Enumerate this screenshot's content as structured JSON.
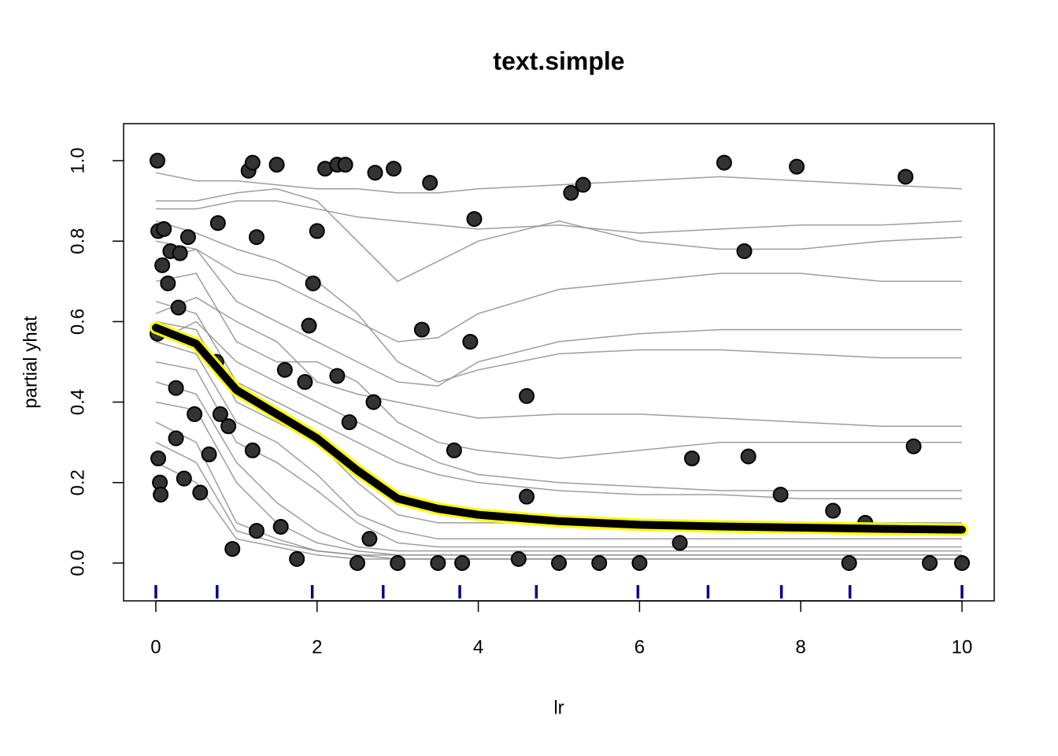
{
  "chart_data": {
    "type": "ice",
    "title": "text.simple",
    "x_label": "lr",
    "y_label": "partial yhat",
    "xlim": [
      -0.4,
      10.4
    ],
    "ylim": [
      -0.094,
      1.092
    ],
    "xticks": [
      0,
      2,
      4,
      6,
      8,
      10
    ],
    "yticks": [
      {
        "value": 0,
        "label": "0.0"
      },
      {
        "value": 0.2,
        "label": "0.2"
      },
      {
        "value": 0.4,
        "label": "0.4"
      },
      {
        "value": 0.6,
        "label": "0.6"
      },
      {
        "value": 0.8,
        "label": "0.8"
      },
      {
        "value": 1,
        "label": "1.0"
      }
    ],
    "line_color": "#8c8c8c",
    "point_color": "#333333",
    "pdp_color": "#000000",
    "pdp_outline_color": "#ffff00",
    "rug_color": "#00008b",
    "x": [
      0,
      0.5,
      1,
      1.5,
      2,
      2.5,
      3,
      3.5,
      4,
      5,
      6,
      7,
      8,
      9,
      10
    ],
    "lines": [
      {
        "values": [
          0.97,
          0.95,
          0.95,
          0.94,
          0.93,
          0.93,
          0.92,
          0.92,
          0.93,
          0.94,
          0.95,
          0.96,
          0.95,
          0.94,
          0.93
        ]
      },
      {
        "values": [
          0.88,
          0.88,
          0.9,
          0.9,
          0.88,
          0.86,
          0.85,
          0.84,
          0.83,
          0.84,
          0.82,
          0.83,
          0.84,
          0.84,
          0.85
        ]
      },
      {
        "values": [
          0.8,
          0.78,
          0.72,
          0.7,
          0.65,
          0.6,
          0.55,
          0.56,
          0.62,
          0.68,
          0.7,
          0.72,
          0.72,
          0.7,
          0.7
        ]
      },
      {
        "values": [
          0.75,
          0.78,
          0.65,
          0.6,
          0.55,
          0.5,
          0.45,
          0.44,
          0.5,
          0.55,
          0.57,
          0.58,
          0.58,
          0.58,
          0.58
        ]
      },
      {
        "values": [
          0.7,
          0.72,
          0.55,
          0.5,
          0.5,
          0.45,
          0.35,
          0.3,
          0.28,
          0.26,
          0.28,
          0.3,
          0.3,
          0.3,
          0.3
        ]
      },
      {
        "values": [
          0.65,
          0.62,
          0.45,
          0.4,
          0.35,
          0.3,
          0.25,
          0.22,
          0.2,
          0.18,
          0.17,
          0.17,
          0.16,
          0.16,
          0.16
        ]
      },
      {
        "values": [
          0.6,
          0.58,
          0.4,
          0.35,
          0.3,
          0.2,
          0.12,
          0.1,
          0.1,
          0.1,
          0.1,
          0.1,
          0.1,
          0.1,
          0.1
        ]
      },
      {
        "values": [
          0.55,
          0.52,
          0.35,
          0.3,
          0.22,
          0.12,
          0.08,
          0.06,
          0.06,
          0.06,
          0.06,
          0.06,
          0.06,
          0.06,
          0.06
        ]
      },
      {
        "values": [
          0.5,
          0.48,
          0.3,
          0.25,
          0.18,
          0.1,
          0.05,
          0.04,
          0.04,
          0.04,
          0.04,
          0.04,
          0.04,
          0.04,
          0.04
        ]
      },
      {
        "values": [
          0.45,
          0.42,
          0.25,
          0.15,
          0.08,
          0.04,
          0.03,
          0.03,
          0.03,
          0.03,
          0.03,
          0.03,
          0.03,
          0.03,
          0.03
        ]
      },
      {
        "values": [
          0.4,
          0.38,
          0.2,
          0.1,
          0.05,
          0.03,
          0.02,
          0.02,
          0.02,
          0.02,
          0.02,
          0.02,
          0.02,
          0.02,
          0.02
        ]
      },
      {
        "values": [
          0.35,
          0.3,
          0.1,
          0.06,
          0.03,
          0.02,
          0.02,
          0.02,
          0.02,
          0.02,
          0.02,
          0.02,
          0.02,
          0.02,
          0.02
        ]
      },
      {
        "values": [
          0.3,
          0.25,
          0.08,
          0.05,
          0.03,
          0.02,
          0.01,
          0.01,
          0.01,
          0.01,
          0.01,
          0.01,
          0.01,
          0.01,
          0.01
        ]
      },
      {
        "values": [
          0.25,
          0.2,
          0.06,
          0.04,
          0.02,
          0.01,
          0.01,
          0.01,
          0.01,
          0.01,
          0.01,
          0.01,
          0.01,
          0.01,
          0.01
        ]
      },
      {
        "values": [
          0.85,
          0.82,
          0.78,
          0.75,
          0.7,
          0.62,
          0.5,
          0.45,
          0.48,
          0.52,
          0.53,
          0.53,
          0.52,
          0.51,
          0.51
        ]
      },
      {
        "values": [
          0.62,
          0.66,
          0.6,
          0.55,
          0.45,
          0.42,
          0.4,
          0.38,
          0.36,
          0.37,
          0.37,
          0.36,
          0.35,
          0.34,
          0.34
        ]
      },
      {
        "values": [
          0.9,
          0.9,
          0.92,
          0.93,
          0.9,
          0.8,
          0.7,
          0.75,
          0.8,
          0.85,
          0.8,
          0.78,
          0.78,
          0.8,
          0.81
        ]
      },
      {
        "values": [
          0.55,
          0.6,
          0.5,
          0.45,
          0.4,
          0.35,
          0.3,
          0.25,
          0.22,
          0.2,
          0.19,
          0.18,
          0.18,
          0.18,
          0.18
        ]
      }
    ],
    "pdp": [
      0.585,
      0.545,
      0.43,
      0.37,
      0.31,
      0.23,
      0.16,
      0.135,
      0.12,
      0.104,
      0.095,
      0.091,
      0.088,
      0.085,
      0.083
    ],
    "points": {
      "x": [
        0.02,
        0.02,
        0.03,
        0.05,
        0.06,
        0.03,
        0.1,
        0.08,
        0.15,
        0.18,
        0.3,
        0.28,
        0.25,
        0.25,
        0.35,
        0.4,
        0.48,
        0.55,
        0.66,
        0.75,
        0.77,
        0.8,
        0.9,
        0.95,
        1.15,
        1.2,
        1.25,
        1.2,
        1.25,
        1.5,
        1.55,
        1.6,
        1.75,
        1.85,
        1.9,
        1.95,
        2.0,
        2.1,
        2.25,
        2.35,
        2.25,
        2.4,
        2.5,
        2.65,
        2.7,
        2.72,
        2.95,
        3.0,
        3.3,
        3.4,
        3.5,
        3.7,
        3.8,
        3.9,
        3.95,
        4.5,
        4.6,
        4.6,
        5.0,
        5.15,
        5.3,
        5.5,
        6.0,
        6.5,
        6.65,
        7.05,
        7.3,
        7.35,
        7.75,
        7.95,
        8.4,
        8.6,
        8.8,
        9.3,
        9.4,
        9.6,
        10.0
      ],
      "y": [
        1.0,
        0.57,
        0.26,
        0.2,
        0.17,
        0.825,
        0.83,
        0.74,
        0.695,
        0.775,
        0.77,
        0.635,
        0.435,
        0.31,
        0.21,
        0.81,
        0.37,
        0.175,
        0.27,
        0.5,
        0.845,
        0.37,
        0.34,
        0.035,
        0.975,
        0.995,
        0.81,
        0.28,
        0.08,
        0.99,
        0.09,
        0.48,
        0.01,
        0.45,
        0.59,
        0.695,
        0.825,
        0.98,
        0.99,
        0.99,
        0.465,
        0.35,
        0.0,
        0.06,
        0.4,
        0.97,
        0.98,
        0.0,
        0.58,
        0.945,
        0.0,
        0.28,
        0.0,
        0.55,
        0.855,
        0.01,
        0.415,
        0.165,
        0.0,
        0.92,
        0.94,
        0.0,
        0.0,
        0.05,
        0.26,
        0.995,
        0.775,
        0.265,
        0.17,
        0.985,
        0.13,
        0.0,
        0.1,
        0.96,
        0.29,
        0.0,
        0.0
      ]
    },
    "rug": [
      0,
      0.76,
      1.94,
      2.82,
      3.77,
      4.72,
      5.98,
      6.85,
      7.76,
      8.61,
      10
    ]
  }
}
